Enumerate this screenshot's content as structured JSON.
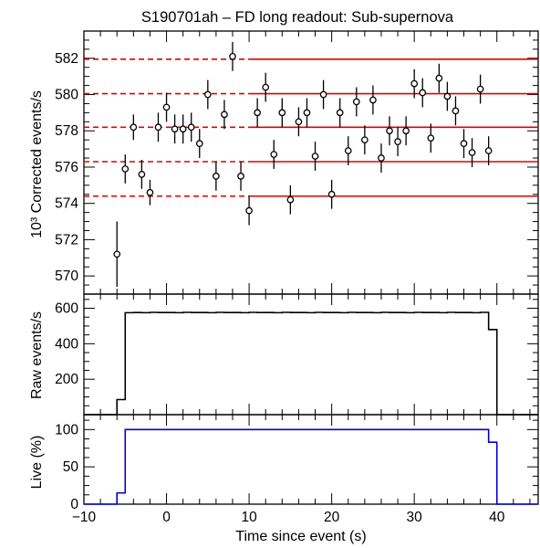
{
  "chart_data": [
    {
      "type": "scatter",
      "panel": "corrected",
      "title": "S190701ah – FD long readout: Sub-supernova",
      "ylabel": "10³ Corrected events/s",
      "xlim": [
        -10,
        45
      ],
      "ylim": [
        569,
        583.5
      ],
      "yticks": [
        570,
        572,
        574,
        576,
        578,
        580,
        582
      ],
      "grid": false,
      "reference_levels": [
        574.4,
        576.3,
        578.2,
        580.05,
        581.95
      ],
      "reference_dashed_until_x": 10,
      "points": [
        {
          "x": -6.0,
          "y": 571.2,
          "err": 1.8
        },
        {
          "x": -5.0,
          "y": 575.9,
          "err": 0.8
        },
        {
          "x": -4.0,
          "y": 578.2,
          "err": 0.7
        },
        {
          "x": -3.0,
          "y": 575.6,
          "err": 0.8
        },
        {
          "x": -2.0,
          "y": 574.6,
          "err": 0.7
        },
        {
          "x": -1.0,
          "y": 578.2,
          "err": 0.8
        },
        {
          "x": 0.0,
          "y": 579.3,
          "err": 0.8
        },
        {
          "x": 1.0,
          "y": 578.1,
          "err": 0.8
        },
        {
          "x": 2.0,
          "y": 578.1,
          "err": 0.8
        },
        {
          "x": 3.0,
          "y": 578.2,
          "err": 0.8
        },
        {
          "x": 4.0,
          "y": 577.3,
          "err": 0.8
        },
        {
          "x": 5.0,
          "y": 580.0,
          "err": 0.8
        },
        {
          "x": 6.0,
          "y": 575.5,
          "err": 0.8
        },
        {
          "x": 7.0,
          "y": 578.9,
          "err": 0.8
        },
        {
          "x": 8.0,
          "y": 582.1,
          "err": 0.8
        },
        {
          "x": 9.0,
          "y": 575.5,
          "err": 0.8
        },
        {
          "x": 10.0,
          "y": 573.6,
          "err": 0.8
        },
        {
          "x": 11.0,
          "y": 579.0,
          "err": 0.8
        },
        {
          "x": 12.0,
          "y": 580.4,
          "err": 0.8
        },
        {
          "x": 13.0,
          "y": 576.7,
          "err": 0.8
        },
        {
          "x": 14.0,
          "y": 579.0,
          "err": 0.8
        },
        {
          "x": 15.0,
          "y": 574.2,
          "err": 0.8
        },
        {
          "x": 16.0,
          "y": 578.5,
          "err": 0.8
        },
        {
          "x": 17.0,
          "y": 579.0,
          "err": 0.8
        },
        {
          "x": 18.0,
          "y": 576.6,
          "err": 0.8
        },
        {
          "x": 19.0,
          "y": 580.0,
          "err": 0.8
        },
        {
          "x": 20.0,
          "y": 574.5,
          "err": 0.8
        },
        {
          "x": 21.0,
          "y": 579.0,
          "err": 0.8
        },
        {
          "x": 22.0,
          "y": 576.9,
          "err": 0.8
        },
        {
          "x": 23.0,
          "y": 579.6,
          "err": 0.8
        },
        {
          "x": 24.0,
          "y": 577.5,
          "err": 0.8
        },
        {
          "x": 25.0,
          "y": 579.7,
          "err": 0.8
        },
        {
          "x": 26.0,
          "y": 576.5,
          "err": 0.8
        },
        {
          "x": 27.0,
          "y": 578.0,
          "err": 0.8
        },
        {
          "x": 28.0,
          "y": 577.4,
          "err": 0.8
        },
        {
          "x": 29.0,
          "y": 578.0,
          "err": 0.8
        },
        {
          "x": 30.0,
          "y": 580.6,
          "err": 0.8
        },
        {
          "x": 31.0,
          "y": 580.1,
          "err": 0.8
        },
        {
          "x": 32.0,
          "y": 577.6,
          "err": 0.8
        },
        {
          "x": 33.0,
          "y": 580.9,
          "err": 0.8
        },
        {
          "x": 34.0,
          "y": 579.9,
          "err": 0.8
        },
        {
          "x": 35.0,
          "y": 579.1,
          "err": 0.8
        },
        {
          "x": 36.0,
          "y": 577.3,
          "err": 0.8
        },
        {
          "x": 37.0,
          "y": 576.8,
          "err": 0.8
        },
        {
          "x": 38.0,
          "y": 580.3,
          "err": 0.8
        },
        {
          "x": 39.0,
          "y": 576.9,
          "err": 0.8
        }
      ],
      "colors": {
        "reference": "#e00000",
        "marker": "#000000"
      }
    },
    {
      "type": "line",
      "panel": "raw",
      "ylabel": "Raw events/s",
      "xlim": [
        -10,
        45
      ],
      "ylim": [
        0,
        680
      ],
      "yticks": [
        200,
        400,
        600
      ],
      "step": true,
      "x": [
        -10,
        -6,
        -5,
        -4,
        -3,
        -2,
        -1,
        0,
        1,
        2,
        3,
        4,
        5,
        6,
        7,
        8,
        9,
        10,
        11,
        12,
        13,
        14,
        15,
        16,
        17,
        18,
        19,
        20,
        21,
        22,
        23,
        24,
        25,
        26,
        27,
        28,
        29,
        30,
        31,
        32,
        33,
        34,
        35,
        36,
        37,
        38,
        39,
        40,
        45
      ],
      "values": [
        0,
        85,
        575,
        576,
        575,
        577,
        576,
        576,
        575,
        577,
        576,
        576,
        575,
        577,
        576,
        576,
        575,
        577,
        576,
        576,
        575,
        577,
        576,
        576,
        575,
        577,
        576,
        576,
        575,
        577,
        576,
        576,
        575,
        577,
        576,
        576,
        575,
        577,
        576,
        576,
        575,
        577,
        576,
        576,
        575,
        577,
        480,
        0,
        0
      ],
      "color": "#000000"
    },
    {
      "type": "line",
      "panel": "live",
      "ylabel": "Live (%)",
      "xlabel": "Time since event (s)",
      "xlim": [
        -10,
        45
      ],
      "ylim": [
        0,
        120
      ],
      "yticks": [
        0,
        50,
        100
      ],
      "xticks": [
        -10,
        0,
        10,
        20,
        30,
        40
      ],
      "step": true,
      "x": [
        -10,
        -6,
        -5,
        39,
        40,
        45
      ],
      "values": [
        0,
        15,
        100,
        83,
        0,
        0
      ],
      "color": "#0000d0"
    }
  ]
}
